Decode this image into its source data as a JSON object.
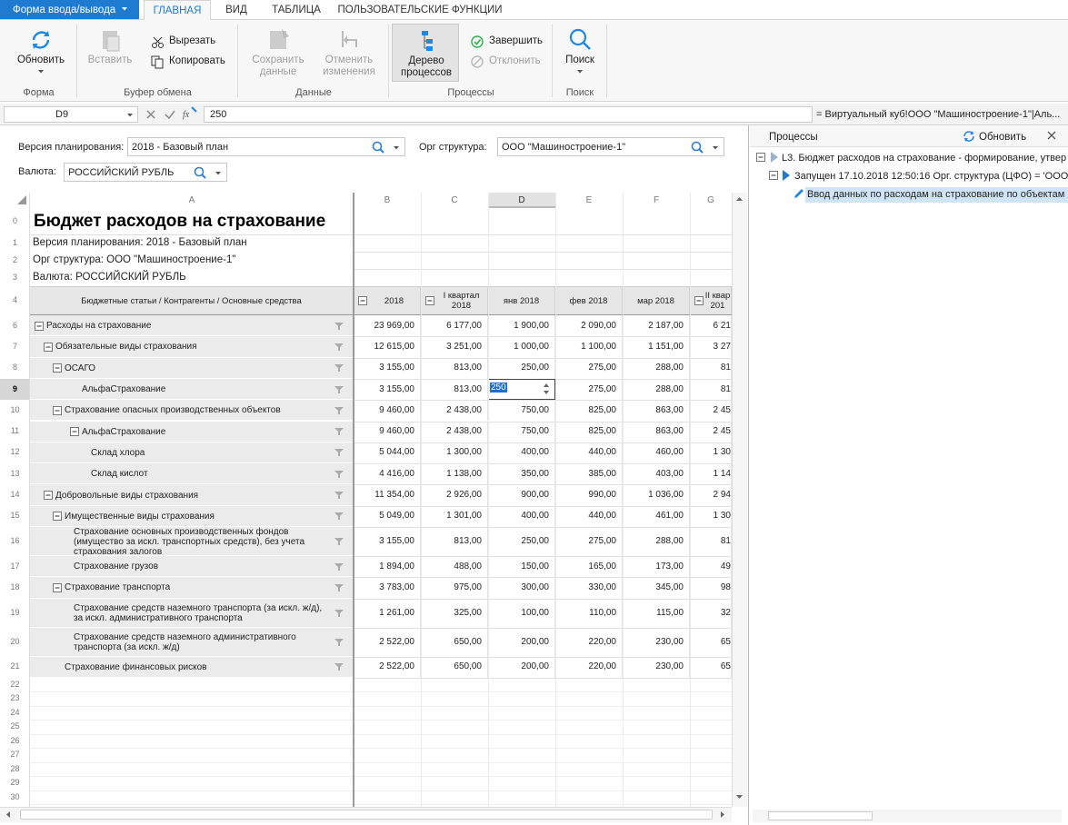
{
  "ribbon": {
    "app_menu": "Форма ввода/вывода",
    "tabs": [
      "ГЛАВНАЯ",
      "ВИД",
      "ТАБЛИЦА",
      "ПОЛЬЗОВАТЕЛЬСКИЕ ФУНКЦИИ"
    ],
    "groups": [
      {
        "label": "Форма",
        "buttons": [
          "Обновить"
        ]
      },
      {
        "label": "Буфер обмена",
        "buttons": [
          "Вставить",
          "Вырезать",
          "Копировать"
        ]
      },
      {
        "label": "Данные",
        "buttons": [
          "Сохранить данные",
          "Отменить изменения"
        ]
      },
      {
        "label": "Процессы",
        "buttons": [
          "Дерево процессов",
          "Завершить",
          "Отклонить"
        ]
      },
      {
        "label": "Поиск",
        "buttons": [
          "Поиск"
        ]
      }
    ]
  },
  "formula_bar": {
    "cell": "D9",
    "value": "250",
    "formula": "= Виртуальный куб!ООО \"Машиностроение-1\"|Аль..."
  },
  "parameters": [
    {
      "label": "Версия планирования:",
      "value": "2018 - Базовый план"
    },
    {
      "label": "Орг структура:",
      "value": "ООО \"Машиностроение-1\""
    },
    {
      "label": "Валюта:",
      "value": "РОССИЙСКИЙ РУБЛЬ"
    }
  ],
  "sheet": {
    "columns": [
      "A",
      "B",
      "C",
      "D",
      "E",
      "F",
      "G"
    ],
    "title_row": {
      "row": 0,
      "text": "Бюджет расходов на страхование"
    },
    "info_rows": [
      {
        "row": 1,
        "text": "Версия планирования: 2018 - Базовый план"
      },
      {
        "row": 2,
        "text": "Орг структура: ООО \"Машиностроение-1\""
      },
      {
        "row": 3,
        "text": "Валюта: РОССИЙСКИЙ РУБЛЬ"
      }
    ],
    "header": {
      "row": 4,
      "cells": [
        "Бюджетные статьи / Контрагенты / Основные средства",
        "2018",
        "I квартал 2018",
        "янв 2018",
        "фев 2018",
        "мар 2018",
        "II квар 201"
      ]
    },
    "rows": [
      {
        "row": 6,
        "label": "Расходы на страхование",
        "values": [
          "23 969,00",
          "6 177,00",
          "1 900,00",
          "2 090,00",
          "2 187,00",
          "6 21"
        ]
      },
      {
        "row": 7,
        "label": "Обязательные виды страхования",
        "values": [
          "12 615,00",
          "3 251,00",
          "1 000,00",
          "1 100,00",
          "1 151,00",
          "3 27"
        ]
      },
      {
        "row": 8,
        "label": "ОСАГО",
        "values": [
          "3 155,00",
          "813,00",
          "250,00",
          "275,00",
          "288,00",
          "81"
        ]
      },
      {
        "row": 9,
        "label": "АльфаСтрахование",
        "values": [
          "3 155,00",
          "813,00",
          "250",
          "275,00",
          "288,00",
          "81"
        ]
      },
      {
        "row": 10,
        "label": "Страхование опасных производственных объектов",
        "values": [
          "9 460,00",
          "2 438,00",
          "750,00",
          "825,00",
          "863,00",
          "2 45"
        ]
      },
      {
        "row": 11,
        "label": "АльфаСтрахование",
        "values": [
          "9 460,00",
          "2 438,00",
          "750,00",
          "825,00",
          "863,00",
          "2 45"
        ]
      },
      {
        "row": 12,
        "label": "Склад хлора",
        "values": [
          "5 044,00",
          "1 300,00",
          "400,00",
          "440,00",
          "460,00",
          "1 30"
        ]
      },
      {
        "row": 13,
        "label": "Склад кислот",
        "values": [
          "4 416,00",
          "1 138,00",
          "350,00",
          "385,00",
          "403,00",
          "1 14"
        ]
      },
      {
        "row": 14,
        "label": "Добровольные виды страхования",
        "values": [
          "11 354,00",
          "2 926,00",
          "900,00",
          "990,00",
          "1 036,00",
          "2 94"
        ]
      },
      {
        "row": 15,
        "label": "Имущественные виды страхования",
        "values": [
          "5 049,00",
          "1 301,00",
          "400,00",
          "440,00",
          "461,00",
          "1 30"
        ]
      },
      {
        "row": 16,
        "label": "Страхование основных производственных фондов (имущество за искл. транспортных средств), без учета страхования залогов",
        "values": [
          "3 155,00",
          "813,00",
          "250,00",
          "275,00",
          "288,00",
          "81"
        ]
      },
      {
        "row": 17,
        "label": "Страхование грузов",
        "values": [
          "1 894,00",
          "488,00",
          "150,00",
          "165,00",
          "173,00",
          "49"
        ]
      },
      {
        "row": 18,
        "label": "Страхование транспорта",
        "values": [
          "3 783,00",
          "975,00",
          "300,00",
          "330,00",
          "345,00",
          "98"
        ]
      },
      {
        "row": 19,
        "label": "Страхование средств наземного транспорта (за искл. ж/д), за искл. административного транспорта",
        "values": [
          "1 261,00",
          "325,00",
          "100,00",
          "110,00",
          "115,00",
          "32"
        ]
      },
      {
        "row": 20,
        "label": "Страхование средств наземного административного транспорта (за искл. ж/д)",
        "values": [
          "2 522,00",
          "650,00",
          "200,00",
          "220,00",
          "230,00",
          "65"
        ]
      },
      {
        "row": 21,
        "label": "Страхование финансовых рисков",
        "values": [
          "2 522,00",
          "650,00",
          "200,00",
          "220,00",
          "230,00",
          "65"
        ]
      }
    ],
    "empty_rows": [
      22,
      23,
      24,
      25,
      26,
      27,
      28,
      29,
      30
    ]
  },
  "process_panel": {
    "title": "Процессы",
    "refresh": "Обновить",
    "nodes": [
      "L3. Бюджет расходов на страхование - формирование, утвер",
      "Запущен 17.10.2018 12:50:16 Орг. структура (ЦФО) = 'ООО",
      "Ввод данных по расходам на страхование по объектам"
    ]
  }
}
